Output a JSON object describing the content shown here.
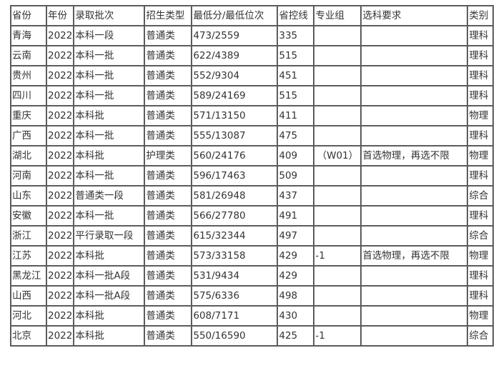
{
  "table": {
    "headers": [
      "省份",
      "年份",
      "录取批次",
      "招生类型",
      "最低分/最低位次",
      "省控线",
      "专业组",
      "选科要求",
      "类别"
    ],
    "rows": [
      [
        "青海",
        "2022",
        "本科一段",
        "普通类",
        "473/2559",
        "335",
        "",
        "",
        "理科"
      ],
      [
        "云南",
        "2022",
        "本科一批",
        "普通类",
        "622/4389",
        "515",
        "",
        "",
        "理科"
      ],
      [
        "贵州",
        "2022",
        "本科一批",
        "普通类",
        "552/9304",
        "451",
        "",
        "",
        "理科"
      ],
      [
        "四川",
        "2022",
        "本科一批",
        "普通类",
        "589/24169",
        "515",
        "",
        "",
        "理科"
      ],
      [
        "重庆",
        "2022",
        "本科批",
        "普通类",
        "571/13150",
        "411",
        "",
        "",
        "物理"
      ],
      [
        "广西",
        "2022",
        "本科一批",
        "普通类",
        "555/13087",
        "475",
        "",
        "",
        "理科"
      ],
      [
        "湖北",
        "2022",
        "本科批",
        "护理类",
        "560/24176",
        "409",
        "（W01）",
        "首选物理，再选不限",
        "物理"
      ],
      [
        "河南",
        "2022",
        "本科一批",
        "普通类",
        "596/17463",
        "509",
        "",
        "",
        "理科"
      ],
      [
        "山东",
        "2022",
        "普通类一段",
        "普通类",
        "581/26948",
        "437",
        "",
        "",
        "综合"
      ],
      [
        "安徽",
        "2022",
        "本科一批",
        "普通类",
        "566/27780",
        "491",
        "",
        "",
        "理科"
      ],
      [
        "浙江",
        "2022",
        "平行录取一段",
        "普通类",
        "615/32344",
        "497",
        "",
        "",
        "综合"
      ],
      [
        "江苏",
        "2022",
        "本科批",
        "普通类",
        "573/33158",
        "429",
        "-1",
        "首选物理，再选不限",
        "物理"
      ],
      [
        "黑龙江",
        "2022",
        "本科一批A段",
        "普通类",
        "531/9434",
        "429",
        "",
        "",
        "理科"
      ],
      [
        "山西",
        "2022",
        "本科一批A段",
        "普通类",
        "575/6336",
        "498",
        "",
        "",
        "理科"
      ],
      [
        "河北",
        "2022",
        "本科批",
        "普通类",
        "608/7171",
        "430",
        "",
        "",
        "物理"
      ],
      [
        "北京",
        "2022",
        "本科批",
        "普通类",
        "550/16590",
        "425",
        "-1",
        "",
        "综合"
      ]
    ]
  }
}
